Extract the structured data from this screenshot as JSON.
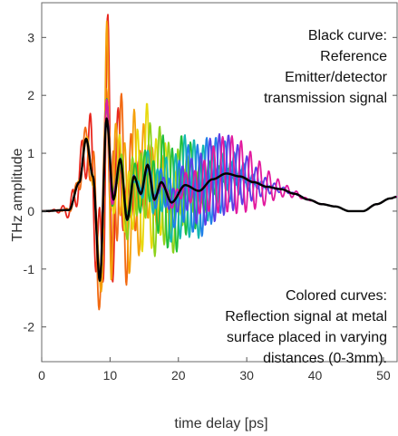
{
  "chart_data": {
    "type": "line",
    "title": "",
    "xlabel": "time delay [ps]",
    "ylabel": "THz amplitude",
    "xlim": [
      0,
      52
    ],
    "ylim": [
      -2.6,
      3.6
    ],
    "xticks": [
      "0",
      "10",
      "20",
      "30",
      "40",
      "50"
    ],
    "yticks": [
      "-2",
      "-1",
      "0",
      "1",
      "2",
      "3"
    ],
    "grid": false,
    "series": [
      {
        "name": "Reference",
        "color": "#000000",
        "x": [
          0,
          4,
          5.5,
          6.5,
          7.5,
          8.5,
          9.5,
          10.5,
          11.5,
          12.5,
          13.5,
          14.5,
          15.5,
          16.5,
          17.5,
          19,
          21,
          23,
          25,
          27,
          29,
          31,
          33,
          35,
          37,
          39,
          41,
          43,
          45,
          47,
          49,
          51,
          52
        ],
        "y": [
          0.0,
          0.02,
          0.5,
          1.25,
          0.6,
          -1.2,
          1.6,
          0.2,
          0.9,
          -0.15,
          0.6,
          0.3,
          0.8,
          0.2,
          0.5,
          0.15,
          0.45,
          0.35,
          0.55,
          0.65,
          0.6,
          0.5,
          0.42,
          0.38,
          0.3,
          0.2,
          0.12,
          0.08,
          0.0,
          0.0,
          0.12,
          0.22,
          0.25
        ]
      }
    ],
    "reflection_series": {
      "count": 10,
      "colors": [
        "#e8271e",
        "#f26a12",
        "#f5a10c",
        "#e8d90d",
        "#8cd21a",
        "#1fbf3a",
        "#12b8b0",
        "#1f7fe8",
        "#5a3ee6",
        "#e21a9e"
      ]
    },
    "annotations": [
      {
        "lines": [
          "Black curve:",
          "Reference",
          "Emitter/detector",
          "transmission signal"
        ]
      },
      {
        "lines": [
          "Colored curves:",
          "Reflection signal at metal",
          "surface placed in varying",
          "distances (0-3mm)."
        ]
      }
    ]
  }
}
